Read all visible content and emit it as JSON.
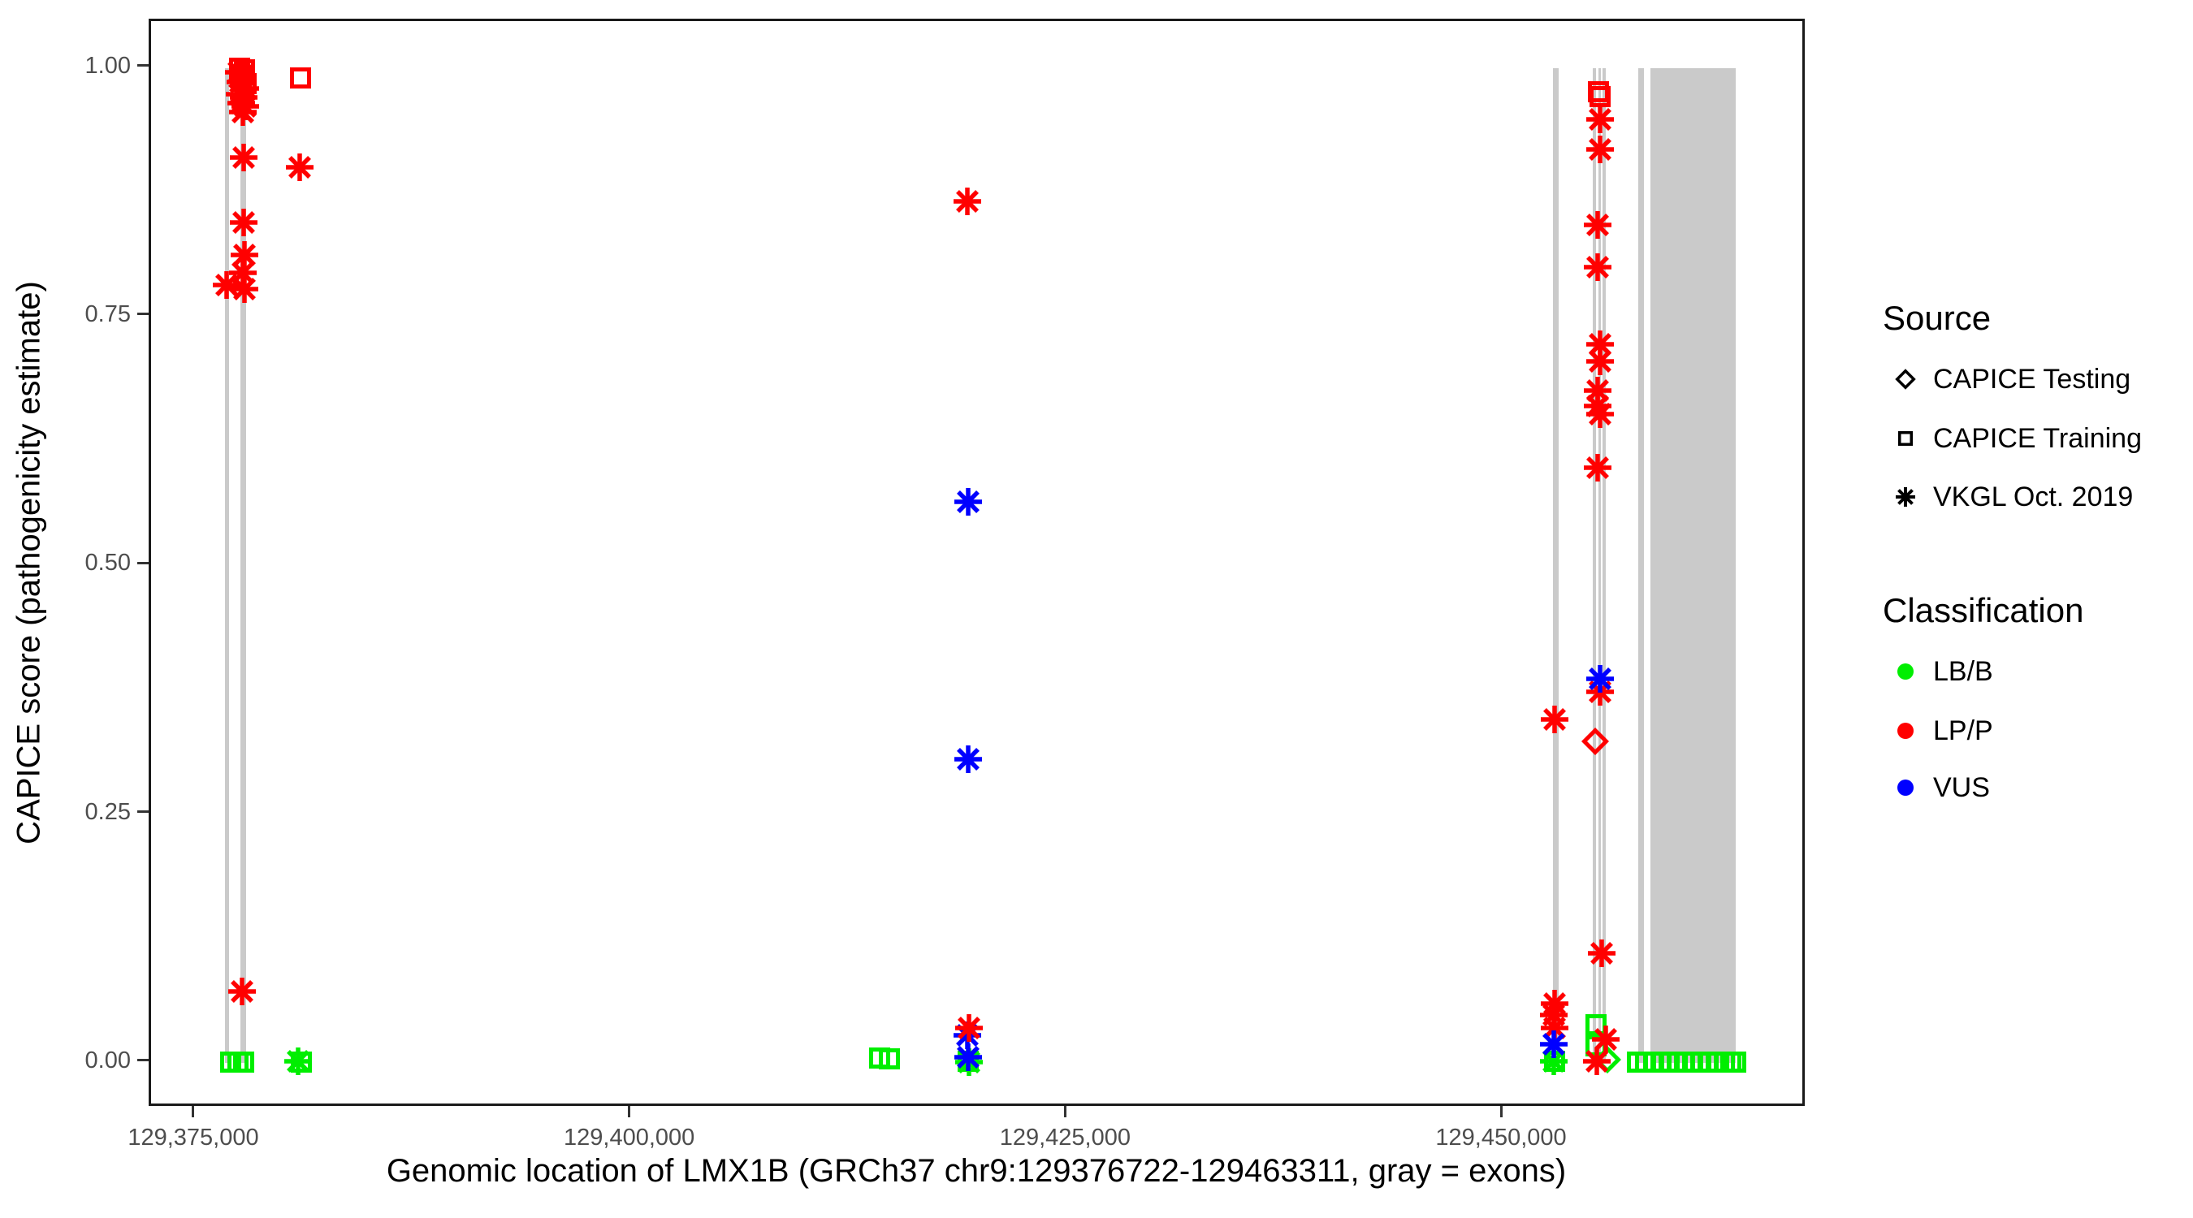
{
  "figure": {
    "background": "#ffffff"
  },
  "colors": {
    "LB/B": "#00ee00",
    "LP/P": "#ff0000",
    "VUS": "#0000ff",
    "exon": "#cacaca",
    "tick": "#333333",
    "tick_text": "#4d4d4d",
    "panel_border": "#1a1a1a",
    "legend_glyph": "#000000"
  },
  "legend": {
    "source": {
      "title": "Source",
      "items": [
        {
          "label": "CAPICE Testing",
          "marker": "diamond"
        },
        {
          "label": "CAPICE Training",
          "marker": "square"
        },
        {
          "label": "VKGL Oct. 2019",
          "marker": "asterisk"
        }
      ]
    },
    "classification": {
      "title": "Classification",
      "items": [
        {
          "label": "LB/B",
          "color": "#00ee00"
        },
        {
          "label": "LP/P",
          "color": "#ff0000"
        },
        {
          "label": "VUS",
          "color": "#0000ff"
        }
      ]
    }
  },
  "chart_data": {
    "type": "scatter",
    "title": "",
    "xlabel": "Genomic location of LMX1B (GRCh37 chr9:129376722-129463311, gray = exons)",
    "ylabel": "CAPICE score (pathogenicity estimate)",
    "gene": {
      "name": "LMX1B",
      "assembly": "GRCh37",
      "chromosome": "chr9",
      "start": 129376722,
      "end": 129463311
    },
    "xlim": [
      129372438,
      129467421
    ],
    "ylim": [
      -0.0457,
      1.047
    ],
    "x_ticks": [
      {
        "value": 129375000,
        "label": "129,375,000"
      },
      {
        "value": 129400000,
        "label": "129,400,000"
      },
      {
        "value": 129425000,
        "label": "129,425,000"
      },
      {
        "value": 129450000,
        "label": "129,450,000"
      }
    ],
    "y_ticks": [
      {
        "value": 0.0,
        "label": "0.00"
      },
      {
        "value": 0.25,
        "label": "0.25"
      },
      {
        "value": 0.5,
        "label": "0.50"
      },
      {
        "value": 0.75,
        "label": "0.75"
      },
      {
        "value": 1.0,
        "label": "1.00"
      }
    ],
    "exons": [
      {
        "start": 129376680,
        "end": 129376920
      },
      {
        "start": 129377580,
        "end": 129377880
      },
      {
        "start": 129452830,
        "end": 129453160
      },
      {
        "start": 129455130,
        "end": 129455320
      },
      {
        "start": 129455430,
        "end": 129455600
      },
      {
        "start": 129455700,
        "end": 129455880
      },
      {
        "start": 129457750,
        "end": 129458080
      },
      {
        "start": 129458430,
        "end": 129463311
      }
    ],
    "point_fields": [
      "position",
      "score",
      "source",
      "classification"
    ],
    "points": [
      [
        129377000,
        0.001,
        "training",
        "LB/B"
      ],
      [
        129377400,
        0.001,
        "training",
        "LB/B"
      ],
      [
        129377750,
        0.001,
        "training",
        "LB/B"
      ],
      [
        129380850,
        0.002,
        "vkgl",
        "LB/B"
      ],
      [
        129381050,
        0.001,
        "training",
        "LB/B"
      ],
      [
        129377500,
        1.0,
        "training",
        "LP/P"
      ],
      [
        129377780,
        0.998,
        "training",
        "LP/P"
      ],
      [
        129377620,
        0.991,
        "training",
        "LP/P"
      ],
      [
        129377880,
        0.984,
        "training",
        "LP/P"
      ],
      [
        129377450,
        0.996,
        "vkgl",
        "LP/P"
      ],
      [
        129377700,
        0.992,
        "vkgl",
        "LP/P"
      ],
      [
        129377560,
        0.986,
        "vkgl",
        "LP/P"
      ],
      [
        129377840,
        0.979,
        "vkgl",
        "LP/P"
      ],
      [
        129377490,
        0.974,
        "vkgl",
        "LP/P"
      ],
      [
        129377740,
        0.97,
        "vkgl",
        "LP/P"
      ],
      [
        129377600,
        0.965,
        "vkgl",
        "LP/P"
      ],
      [
        129377860,
        0.961,
        "vkgl",
        "LP/P"
      ],
      [
        129377690,
        0.956,
        "vkgl",
        "LP/P"
      ],
      [
        129381000,
        0.99,
        "training",
        "LP/P"
      ],
      [
        129377750,
        0.91,
        "vkgl",
        "LP/P"
      ],
      [
        129380950,
        0.9,
        "vkgl",
        "LP/P"
      ],
      [
        129377750,
        0.845,
        "vkgl",
        "LP/P"
      ],
      [
        129377800,
        0.812,
        "vkgl",
        "LP/P"
      ],
      [
        129377700,
        0.794,
        "vkgl",
        "LP/P"
      ],
      [
        129376750,
        0.782,
        "vkgl",
        "LP/P"
      ],
      [
        129377800,
        0.778,
        "vkgl",
        "LP/P"
      ],
      [
        129377660,
        0.072,
        "vkgl",
        "LP/P"
      ],
      [
        129414200,
        0.005,
        "training",
        "LB/B"
      ],
      [
        129414800,
        0.004,
        "training",
        "LB/B"
      ],
      [
        129419300,
        0.002,
        "training",
        "LB/B"
      ],
      [
        129419350,
        0.001,
        "vkgl",
        "LB/B"
      ],
      [
        129419250,
        0.866,
        "vkgl",
        "LP/P"
      ],
      [
        129419300,
        0.564,
        "vkgl",
        "VUS"
      ],
      [
        129419300,
        0.305,
        "vkgl",
        "VUS"
      ],
      [
        129419250,
        0.028,
        "vkgl",
        "VUS"
      ],
      [
        129419350,
        0.035,
        "vkgl",
        "LP/P"
      ],
      [
        129419300,
        0.006,
        "vkgl",
        "VUS"
      ],
      [
        129452950,
        0.002,
        "training",
        "LB/B"
      ],
      [
        129452900,
        0.002,
        "vkgl",
        "LB/B"
      ],
      [
        129452950,
        0.345,
        "vkgl",
        "LP/P"
      ],
      [
        129452950,
        0.06,
        "vkgl",
        "LP/P"
      ],
      [
        129452900,
        0.048,
        "vkgl",
        "LP/P"
      ],
      [
        129452950,
        0.035,
        "vkgl",
        "LP/P"
      ],
      [
        129452900,
        0.019,
        "vkgl",
        "VUS"
      ],
      [
        129455300,
        0.038,
        "training",
        "LB/B"
      ],
      [
        129455300,
        0.017,
        "training",
        "LB/B"
      ],
      [
        129455950,
        0.003,
        "testing",
        "LB/B"
      ],
      [
        129455450,
        0.976,
        "training",
        "LP/P"
      ],
      [
        129455560,
        0.971,
        "training",
        "LP/P"
      ],
      [
        129455550,
        0.948,
        "vkgl",
        "LP/P"
      ],
      [
        129455520,
        0.918,
        "vkgl",
        "LP/P"
      ],
      [
        129455400,
        0.842,
        "vkgl",
        "LP/P"
      ],
      [
        129455380,
        0.8,
        "vkgl",
        "LP/P"
      ],
      [
        129455550,
        0.722,
        "vkgl",
        "LP/P"
      ],
      [
        129455520,
        0.705,
        "vkgl",
        "LP/P"
      ],
      [
        129455400,
        0.676,
        "vkgl",
        "LP/P"
      ],
      [
        129455400,
        0.66,
        "vkgl",
        "LP/P"
      ],
      [
        129455560,
        0.652,
        "vkgl",
        "LP/P"
      ],
      [
        129455420,
        0.598,
        "vkgl",
        "LP/P"
      ],
      [
        129455560,
        0.373,
        "vkgl",
        "LP/P"
      ],
      [
        129455560,
        0.386,
        "vkgl",
        "VUS"
      ],
      [
        129455280,
        0.323,
        "testing",
        "LP/P"
      ],
      [
        129455650,
        0.11,
        "vkgl",
        "LP/P"
      ],
      [
        129455850,
        0.024,
        "vkgl",
        "LP/P"
      ],
      [
        129455350,
        0.002,
        "vkgl",
        "LP/P"
      ],
      [
        129457700,
        0.001,
        "training",
        "LB/B"
      ],
      [
        129458150,
        0.001,
        "training",
        "LB/B"
      ],
      [
        129458600,
        0.001,
        "training",
        "LB/B"
      ],
      [
        129459050,
        0.001,
        "training",
        "LB/B"
      ],
      [
        129459500,
        0.001,
        "training",
        "LB/B"
      ],
      [
        129459950,
        0.001,
        "training",
        "LB/B"
      ],
      [
        129460400,
        0.001,
        "training",
        "LB/B"
      ],
      [
        129460850,
        0.001,
        "training",
        "LB/B"
      ],
      [
        129461300,
        0.001,
        "training",
        "LB/B"
      ],
      [
        129461750,
        0.001,
        "training",
        "LB/B"
      ],
      [
        129462200,
        0.001,
        "training",
        "LB/B"
      ],
      [
        129462650,
        0.001,
        "training",
        "LB/B"
      ],
      [
        129463050,
        0.001,
        "training",
        "LB/B"
      ],
      [
        129463300,
        0.001,
        "training",
        "LB/B"
      ]
    ],
    "legend_position": "right",
    "grid": false
  }
}
